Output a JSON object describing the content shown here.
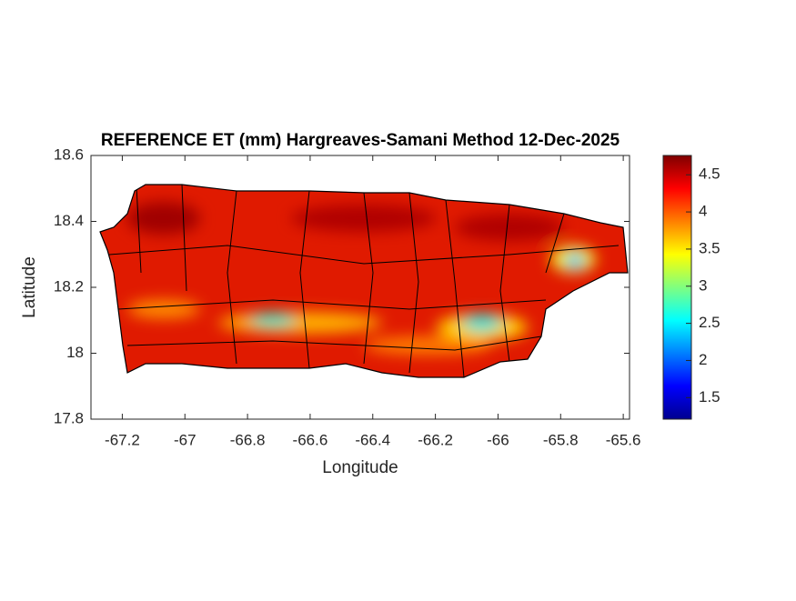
{
  "chart_data": {
    "type": "heatmap-map",
    "title": "REFERENCE ET (mm) Hargreaves-Samani Method  12-Dec-2025",
    "x_label": "Longitude",
    "y_label": "Latitude",
    "xlim": [
      -67.3,
      -65.58
    ],
    "xticks": [
      -67.2,
      -67,
      -66.8,
      -66.6,
      -66.4,
      -66.2,
      -66,
      -65.8,
      -65.6
    ],
    "ylim": [
      17.8,
      18.6
    ],
    "yticks": [
      17.8,
      18,
      18.2,
      18.4,
      18.6
    ],
    "colorbar": {
      "colormap": "jet",
      "lim": [
        1.21,
        4.76
      ],
      "ticks": [
        1.5,
        2,
        2.5,
        3,
        3.5,
        4,
        4.5
      ]
    }
  }
}
